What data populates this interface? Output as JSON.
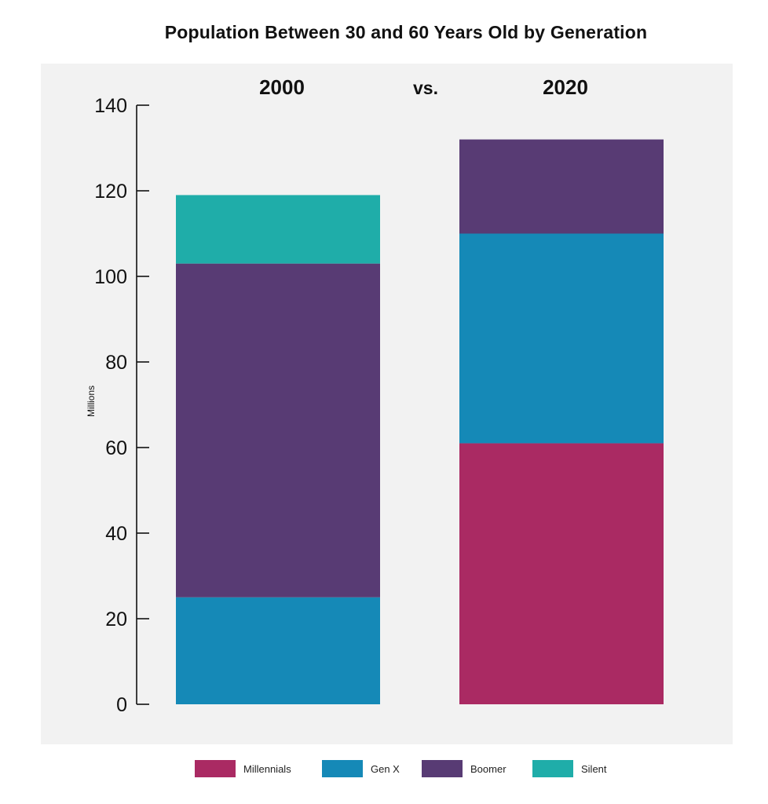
{
  "chart_data": {
    "type": "bar",
    "stacked": true,
    "title": "Population Between 30 and 60 Years Old by Generation",
    "ylabel": "Millions",
    "ylim": [
      0,
      140
    ],
    "yticks": [
      0,
      20,
      40,
      60,
      80,
      100,
      120,
      140
    ],
    "categories": [
      "2000",
      "2020"
    ],
    "separator_label": "vs.",
    "series": [
      {
        "name": "Millennials",
        "color": "#aa2a63",
        "values": [
          0,
          61
        ]
      },
      {
        "name": "Gen X",
        "color": "#1589b7",
        "values": [
          25,
          49
        ]
      },
      {
        "name": "Boomer",
        "color": "#583b74",
        "values": [
          78,
          22
        ]
      },
      {
        "name": "Silent",
        "color": "#1fada9",
        "values": [
          16,
          0
        ]
      }
    ],
    "legend_position": "bottom",
    "grid": false
  }
}
